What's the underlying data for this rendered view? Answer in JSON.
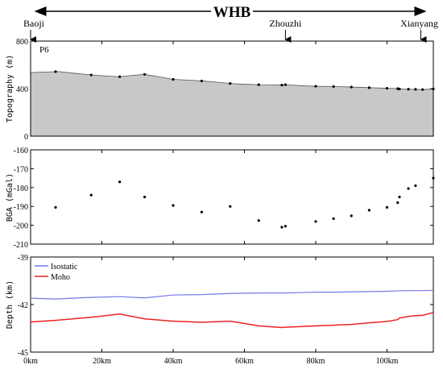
{
  "header": {
    "title": "WHB",
    "locations": [
      {
        "name": "Baoji",
        "x_km": 0
      },
      {
        "name": "Zhouzhi",
        "x_km": 71.5
      },
      {
        "name": "Xianyang",
        "x_km": 109.5
      }
    ]
  },
  "x_axis": {
    "ticks": [
      "0km",
      "20km",
      "40km",
      "60km",
      "80km",
      "100km"
    ],
    "tick_values": [
      0,
      20,
      40,
      60,
      80,
      100
    ],
    "range": [
      0,
      113
    ]
  },
  "chart_data": [
    {
      "type": "area",
      "panel_label": "P6",
      "ylabel": "Topography (m)",
      "ylim": [
        0,
        800
      ],
      "yticks": [
        "0",
        "400",
        "800"
      ],
      "ytick_values": [
        0,
        400,
        800
      ],
      "fill_color": "#c8c8c8",
      "x": [
        0,
        4,
        8,
        12,
        17,
        21,
        25,
        28,
        32,
        36,
        40,
        44,
        48,
        52,
        56,
        60,
        64,
        68,
        70.5,
        71.5,
        76,
        80,
        85,
        90,
        95,
        100,
        103,
        103.5,
        106,
        108,
        110,
        113
      ],
      "y": [
        535,
        540,
        543,
        530,
        515,
        507,
        500,
        510,
        520,
        500,
        478,
        472,
        465,
        455,
        443,
        437,
        433,
        432,
        430,
        433,
        425,
        420,
        418,
        413,
        408,
        403,
        400,
        397,
        395,
        394,
        392,
        397
      ],
      "points_x": [
        7,
        17,
        25,
        32,
        40,
        48,
        56,
        64,
        70.5,
        71.5,
        80,
        85,
        90,
        95,
        100,
        103,
        103.5,
        106,
        108,
        110,
        113
      ],
      "points_y": [
        543,
        515,
        500,
        520,
        478,
        465,
        443,
        433,
        430,
        433,
        420,
        418,
        413,
        408,
        403,
        400,
        397,
        395,
        394,
        392,
        397
      ]
    },
    {
      "type": "scatter",
      "ylabel": "BGA (mGal)",
      "ylim": [
        -210,
        -160
      ],
      "yticks": [
        "-160",
        "-170",
        "-180",
        "-190",
        "-200",
        "-210"
      ],
      "ytick_values": [
        -160,
        -170,
        -180,
        -190,
        -200,
        -210
      ],
      "x": [
        7,
        17,
        25,
        32,
        40,
        48,
        56,
        64,
        70.5,
        71.5,
        80,
        85,
        90,
        95,
        100,
        103,
        103.5,
        106,
        108,
        113
      ],
      "y": [
        -190.5,
        -184,
        -177,
        -185,
        -189.5,
        -193,
        -190,
        -197.5,
        -201,
        -200.5,
        -198,
        -196.5,
        -195,
        -192,
        -190.5,
        -188,
        -185,
        -180.5,
        -179,
        -175
      ]
    },
    {
      "type": "line",
      "ylabel": "Depth (km)",
      "ylim": [
        -45,
        -39
      ],
      "yticks": [
        "-39",
        "-42",
        "-45"
      ],
      "ytick_values": [
        -39,
        -42,
        -45
      ],
      "legend": "top-left",
      "series": [
        {
          "name": "Isostatic",
          "color": "#7777ee",
          "x": [
            0,
            7,
            17,
            25,
            32,
            40,
            48,
            56,
            64,
            70.5,
            71.5,
            80,
            85,
            90,
            95,
            100,
            103,
            103.5,
            106,
            108,
            110,
            113
          ],
          "y": [
            -41.6,
            -41.65,
            -41.55,
            -41.5,
            -41.58,
            -41.4,
            -41.37,
            -41.3,
            -41.27,
            -41.27,
            -41.27,
            -41.22,
            -41.22,
            -41.2,
            -41.18,
            -41.16,
            -41.14,
            -41.13,
            -41.12,
            -41.12,
            -41.12,
            -41.1
          ]
        },
        {
          "name": "Moho",
          "color": "#ee2222",
          "x": [
            0,
            7,
            17,
            25,
            32,
            40,
            48,
            56,
            64,
            70.5,
            71.5,
            80,
            85,
            90,
            95,
            100,
            103,
            103.5,
            106,
            108,
            110,
            113
          ],
          "y": [
            -43.1,
            -43.0,
            -42.8,
            -42.6,
            -42.9,
            -43.05,
            -43.12,
            -43.05,
            -43.35,
            -43.45,
            -43.43,
            -43.35,
            -43.3,
            -43.25,
            -43.15,
            -43.07,
            -42.95,
            -42.85,
            -42.75,
            -42.7,
            -42.68,
            -42.5
          ]
        }
      ]
    }
  ]
}
